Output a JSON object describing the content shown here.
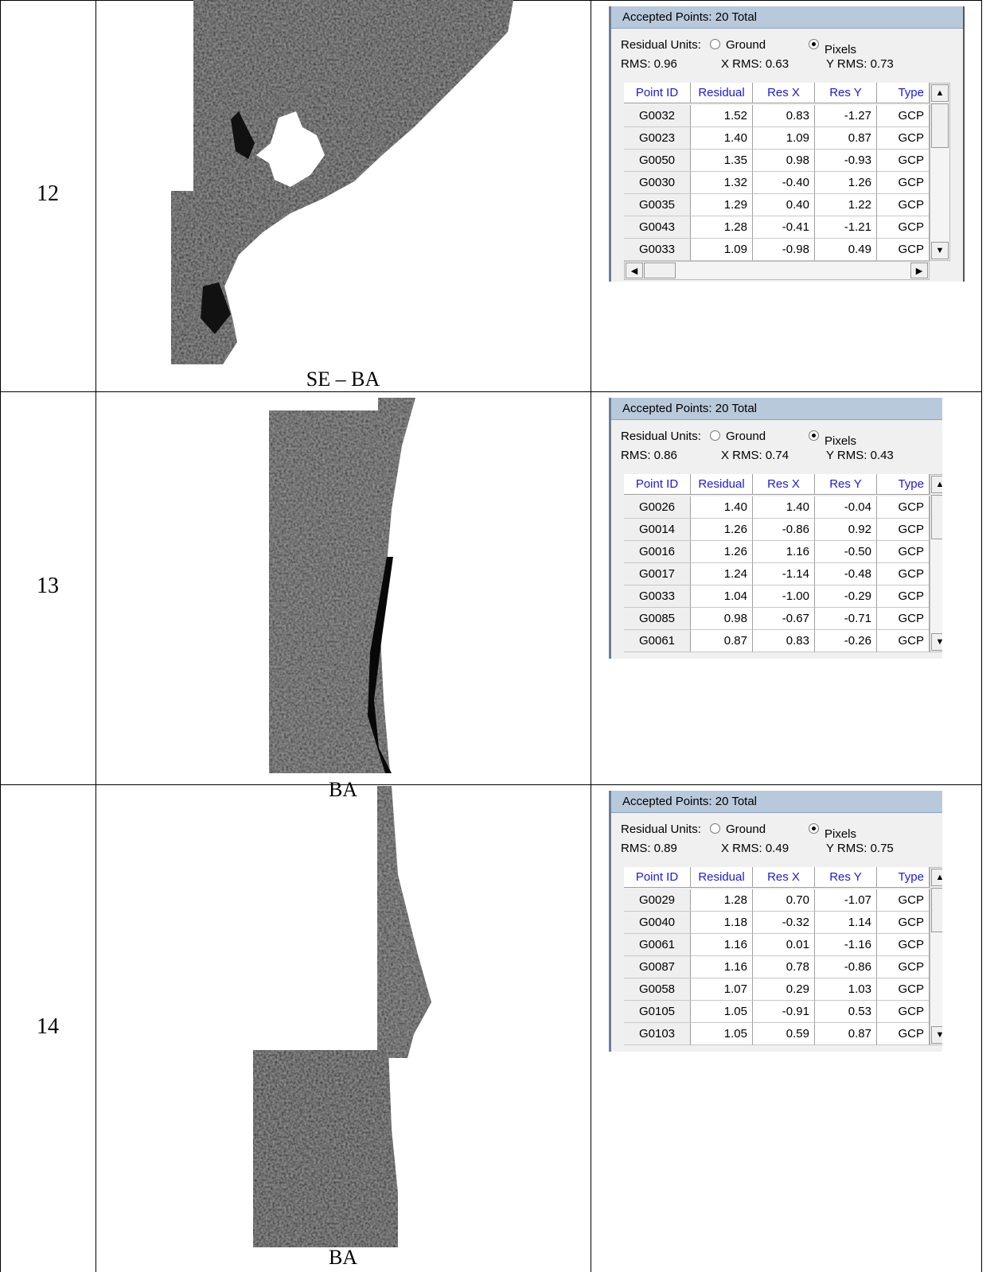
{
  "rows": [
    {
      "number": "12",
      "caption": "SE – BA",
      "panel": {
        "title": "Accepted Points: 20 Total",
        "units_label": "Residual Units:",
        "ground": "Ground",
        "pixels": "Pixels",
        "rms": "RMS: 0.96",
        "x_rms": "X RMS: 0.63",
        "y_rms": "Y RMS: 0.73",
        "columns": [
          "Point ID",
          "Residual",
          "Res X",
          "Res Y",
          "Type"
        ],
        "rows": [
          [
            "G0032",
            "1.52",
            "0.83",
            "-1.27",
            "GCP"
          ],
          [
            "G0023",
            "1.40",
            "1.09",
            "0.87",
            "GCP"
          ],
          [
            "G0050",
            "1.35",
            "0.98",
            "-0.93",
            "GCP"
          ],
          [
            "G0030",
            "1.32",
            "-0.40",
            "1.26",
            "GCP"
          ],
          [
            "G0035",
            "1.29",
            "0.40",
            "1.22",
            "GCP"
          ],
          [
            "G0043",
            "1.28",
            "-0.41",
            "-1.21",
            "GCP"
          ],
          [
            "G0033",
            "1.09",
            "-0.98",
            "0.49",
            "GCP"
          ]
        ]
      }
    },
    {
      "number": "13",
      "caption": "BA",
      "panel": {
        "title": "Accepted Points: 20 Total",
        "units_label": "Residual Units:",
        "ground": "Ground",
        "pixels": "Pixels",
        "rms": "RMS: 0.86",
        "x_rms": "X RMS: 0.74",
        "y_rms": "Y RMS: 0.43",
        "columns": [
          "Point ID",
          "Residual",
          "Res X",
          "Res Y",
          "Type"
        ],
        "rows": [
          [
            "G0026",
            "1.40",
            "1.40",
            "-0.04",
            "GCP"
          ],
          [
            "G0014",
            "1.26",
            "-0.86",
            "0.92",
            "GCP"
          ],
          [
            "G0016",
            "1.26",
            "1.16",
            "-0.50",
            "GCP"
          ],
          [
            "G0017",
            "1.24",
            "-1.14",
            "-0.48",
            "GCP"
          ],
          [
            "G0033",
            "1.04",
            "-1.00",
            "-0.29",
            "GCP"
          ],
          [
            "G0085",
            "0.98",
            "-0.67",
            "-0.71",
            "GCP"
          ],
          [
            "G0061",
            "0.87",
            "0.83",
            "-0.26",
            "GCP"
          ]
        ]
      }
    },
    {
      "number": "14",
      "caption": "BA",
      "panel": {
        "title": "Accepted Points: 20 Total",
        "units_label": "Residual Units:",
        "ground": "Ground",
        "pixels": "Pixels",
        "rms": "RMS: 0.89",
        "x_rms": "X RMS: 0.49",
        "y_rms": "Y RMS: 0.75",
        "columns": [
          "Point ID",
          "Residual",
          "Res X",
          "Res Y",
          "Type"
        ],
        "rows": [
          [
            "G0029",
            "1.28",
            "0.70",
            "-1.07",
            "GCP"
          ],
          [
            "G0040",
            "1.18",
            "-0.32",
            "1.14",
            "GCP"
          ],
          [
            "G0061",
            "1.16",
            "0.01",
            "-1.16",
            "GCP"
          ],
          [
            "G0087",
            "1.16",
            "0.78",
            "-0.86",
            "GCP"
          ],
          [
            "G0058",
            "1.07",
            "0.29",
            "1.03",
            "GCP"
          ],
          [
            "G0105",
            "1.05",
            "-0.91",
            "0.53",
            "GCP"
          ],
          [
            "G0103",
            "1.05",
            "0.59",
            "0.87",
            "GCP"
          ]
        ]
      }
    }
  ]
}
